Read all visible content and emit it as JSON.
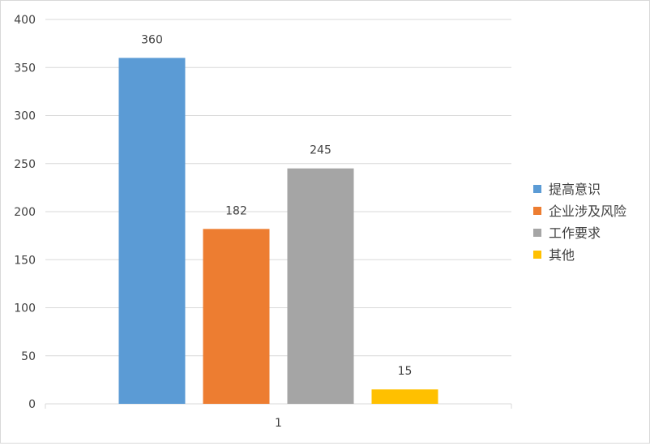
{
  "chart_data": {
    "type": "bar",
    "title": "",
    "xlabel": "",
    "ylabel": "",
    "categories": [
      "1"
    ],
    "ylim": [
      0,
      400
    ],
    "ytick_step": 50,
    "grid": true,
    "legend_position": "right",
    "data_labels": true,
    "series": [
      {
        "name": "提高意识",
        "values": [
          360
        ],
        "color": "#5b9bd5"
      },
      {
        "name": "企业涉及风险",
        "values": [
          182
        ],
        "color": "#ed7d31"
      },
      {
        "name": "工作要求",
        "values": [
          245
        ],
        "color": "#a5a5a5"
      },
      {
        "name": "其他",
        "values": [
          15
        ],
        "color": "#ffc000"
      }
    ]
  }
}
